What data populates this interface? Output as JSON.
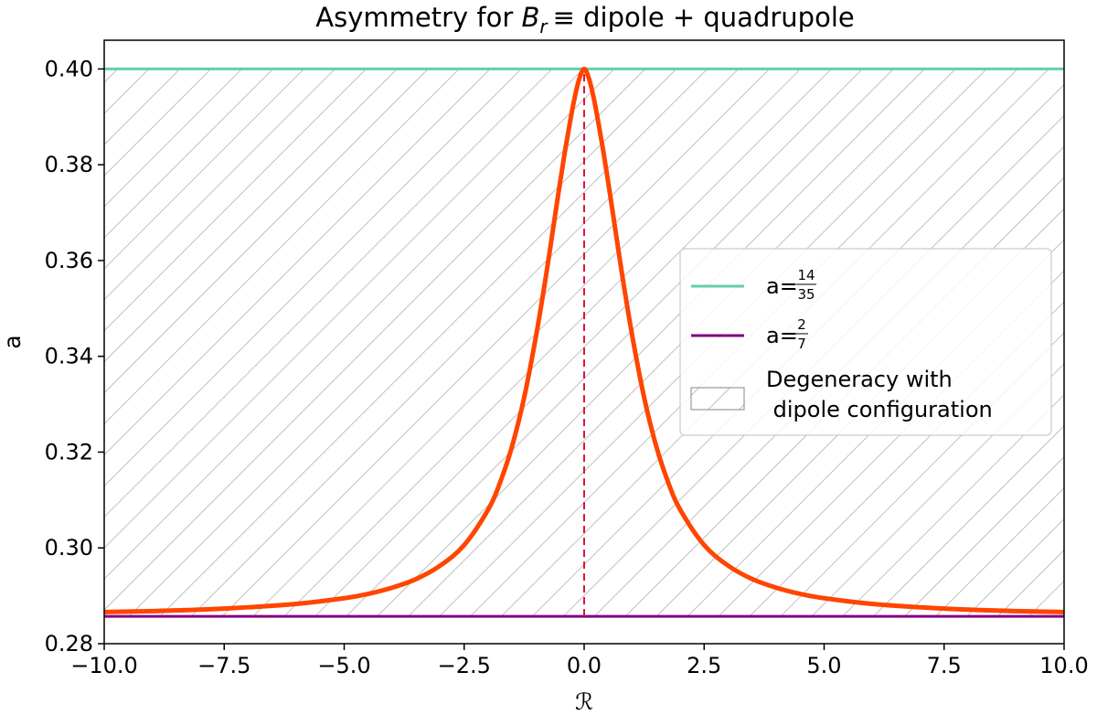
{
  "chart_data": {
    "type": "line",
    "title_prefix": "Asymmetry for ",
    "title_symbol": "B",
    "title_subscript": "r",
    "title_suffix": "≡ dipole + quadrupole",
    "xlabel": "ℛ",
    "ylabel": "a",
    "xlim": [
      -10,
      10
    ],
    "ylim": [
      0.28,
      0.406
    ],
    "xticks": [
      -10,
      -7.5,
      -5,
      -2.5,
      0,
      2.5,
      5,
      7.5,
      10
    ],
    "xtick_labels": [
      "−10.0",
      "−7.5",
      "−5.0",
      "−2.5",
      "0.0",
      "2.5",
      "5.0",
      "7.5",
      "10.0"
    ],
    "yticks": [
      0.28,
      0.3,
      0.32,
      0.34,
      0.36,
      0.38,
      0.4
    ],
    "ytick_labels": [
      "0.28",
      "0.30",
      "0.32",
      "0.34",
      "0.36",
      "0.38",
      "0.40"
    ],
    "curve": {
      "name": "asymmetry",
      "color": "#ff4500",
      "x": [
        -10,
        -9,
        -8,
        -7,
        -6,
        -5,
        -4.5,
        -4,
        -3.5,
        -3,
        -2.5,
        -2,
        -1.75,
        -1.5,
        -1.25,
        -1,
        -0.8,
        -0.6,
        -0.5,
        -0.4,
        -0.3,
        -0.2,
        -0.1,
        0,
        0.1,
        0.2,
        0.3,
        0.4,
        0.5,
        0.6,
        0.8,
        1,
        1.25,
        1.5,
        1.75,
        2,
        2.5,
        3,
        3.5,
        4,
        4.5,
        5,
        6,
        7,
        8,
        9,
        10
      ],
      "y": [
        0.2866,
        0.2868,
        0.2871,
        0.2876,
        0.2883,
        0.2895,
        0.2904,
        0.2917,
        0.2935,
        0.2963,
        0.3006,
        0.308,
        0.3137,
        0.3213,
        0.3314,
        0.3444,
        0.3565,
        0.3698,
        0.3764,
        0.3828,
        0.3886,
        0.3939,
        0.398,
        0.4,
        0.398,
        0.3939,
        0.3886,
        0.3828,
        0.3764,
        0.3698,
        0.3565,
        0.3444,
        0.3314,
        0.3213,
        0.3137,
        0.308,
        0.3006,
        0.2963,
        0.2935,
        0.2917,
        0.2904,
        0.2895,
        0.2883,
        0.2876,
        0.2871,
        0.2868,
        0.2866
      ]
    },
    "hlines": [
      {
        "name": "a-14-35",
        "y": 0.4,
        "color": "#66cdaa",
        "label_prefix": "a=",
        "num": "14",
        "den": "35"
      },
      {
        "name": "a-2-7",
        "y": 0.2857,
        "color": "#800080",
        "label_prefix": "a=",
        "num": "2",
        "den": "7"
      }
    ],
    "vline": {
      "x": 0,
      "y0": 0.2857,
      "y1": 0.4,
      "color": "#dc143c",
      "style": "dashed"
    },
    "hatch_region": {
      "y0": 0.2857,
      "y1": 0.4,
      "color": "#b0b0b0"
    },
    "legend": {
      "position": "center-right",
      "hatch_label_line1": "Degeneracy with",
      "hatch_label_line2": " dipole configuration"
    }
  }
}
